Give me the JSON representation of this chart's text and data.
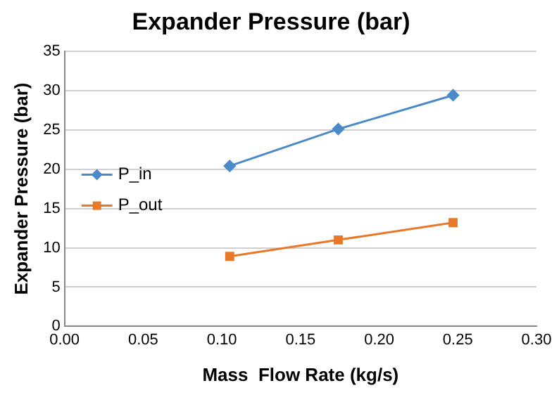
{
  "chart_data": {
    "type": "line",
    "title": "Expander Pressure (bar)",
    "xlabel": "Mass  Flow Rate (kg/s)",
    "ylabel": "Expander Pressure (bar)",
    "xlim": [
      0,
      0.3
    ],
    "xticks": [
      {
        "value": 0,
        "label": "0.00"
      },
      {
        "value": 0.05,
        "label": "0.05"
      },
      {
        "value": 0.1,
        "label": "0.10"
      },
      {
        "value": 0.15,
        "label": "0.15"
      },
      {
        "value": 0.2,
        "label": "0.20"
      },
      {
        "value": 0.25,
        "label": "0.25"
      },
      {
        "value": 0.3,
        "label": "0.30"
      }
    ],
    "ylim": [
      0,
      35
    ],
    "yticks": [
      0,
      5,
      10,
      15,
      20,
      25,
      30,
      35
    ],
    "grid": "y",
    "legend": "left",
    "series": [
      {
        "name": "P_in",
        "color": "#4a8ac8",
        "marker": "diamond",
        "x": [
          0.105,
          0.174,
          0.247
        ],
        "values": [
          20.4,
          25.1,
          29.4
        ]
      },
      {
        "name": "P_out",
        "color": "#e8782a",
        "marker": "square",
        "x": [
          0.105,
          0.174,
          0.247
        ],
        "values": [
          8.9,
          11.0,
          13.2
        ]
      }
    ]
  }
}
